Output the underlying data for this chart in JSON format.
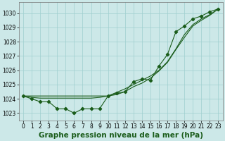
{
  "x": [
    0,
    1,
    2,
    3,
    4,
    5,
    6,
    7,
    8,
    9,
    10,
    11,
    12,
    13,
    14,
    15,
    16,
    17,
    18,
    19,
    20,
    21,
    22,
    23
  ],
  "main_line": [
    1024.2,
    1024.0,
    1023.8,
    1023.8,
    1023.3,
    1023.3,
    1023.0,
    1023.3,
    1023.3,
    1023.3,
    1024.2,
    1024.4,
    1024.5,
    1025.2,
    1025.4,
    1025.3,
    1026.3,
    1027.1,
    1028.7,
    1029.1,
    1029.6,
    1029.8,
    1030.1,
    1030.3
  ],
  "trend_line": [
    1024.2,
    1024.1,
    1024.05,
    1024.05,
    1024.05,
    1024.05,
    1024.05,
    1024.05,
    1024.05,
    1024.1,
    1024.2,
    1024.45,
    1024.7,
    1025.0,
    1025.3,
    1025.6,
    1026.0,
    1026.6,
    1027.5,
    1028.5,
    1029.2,
    1029.6,
    1029.9,
    1030.3
  ],
  "straight_line": [
    1024.2,
    1024.2,
    1024.2,
    1024.2,
    1024.2,
    1024.2,
    1024.2,
    1024.2,
    1024.2,
    1024.2,
    1024.2,
    1024.3,
    1024.5,
    1024.85,
    1025.1,
    1025.45,
    1025.95,
    1026.55,
    1027.45,
    1028.3,
    1029.1,
    1029.5,
    1029.85,
    1030.3
  ],
  "line_color": "#1a5c1a",
  "bg_color": "#cce8e8",
  "grid_color": "#9fcfcf",
  "xlabel": "Graphe pression niveau de la mer (hPa)",
  "ylim": [
    1022.5,
    1030.75
  ],
  "yticks": [
    1023,
    1024,
    1025,
    1026,
    1027,
    1028,
    1029,
    1030
  ],
  "xticks": [
    0,
    1,
    2,
    3,
    4,
    5,
    6,
    7,
    8,
    9,
    10,
    11,
    12,
    13,
    14,
    15,
    16,
    17,
    18,
    19,
    20,
    21,
    22,
    23
  ],
  "tick_fontsize": 5.5,
  "xlabel_fontsize": 7.5
}
